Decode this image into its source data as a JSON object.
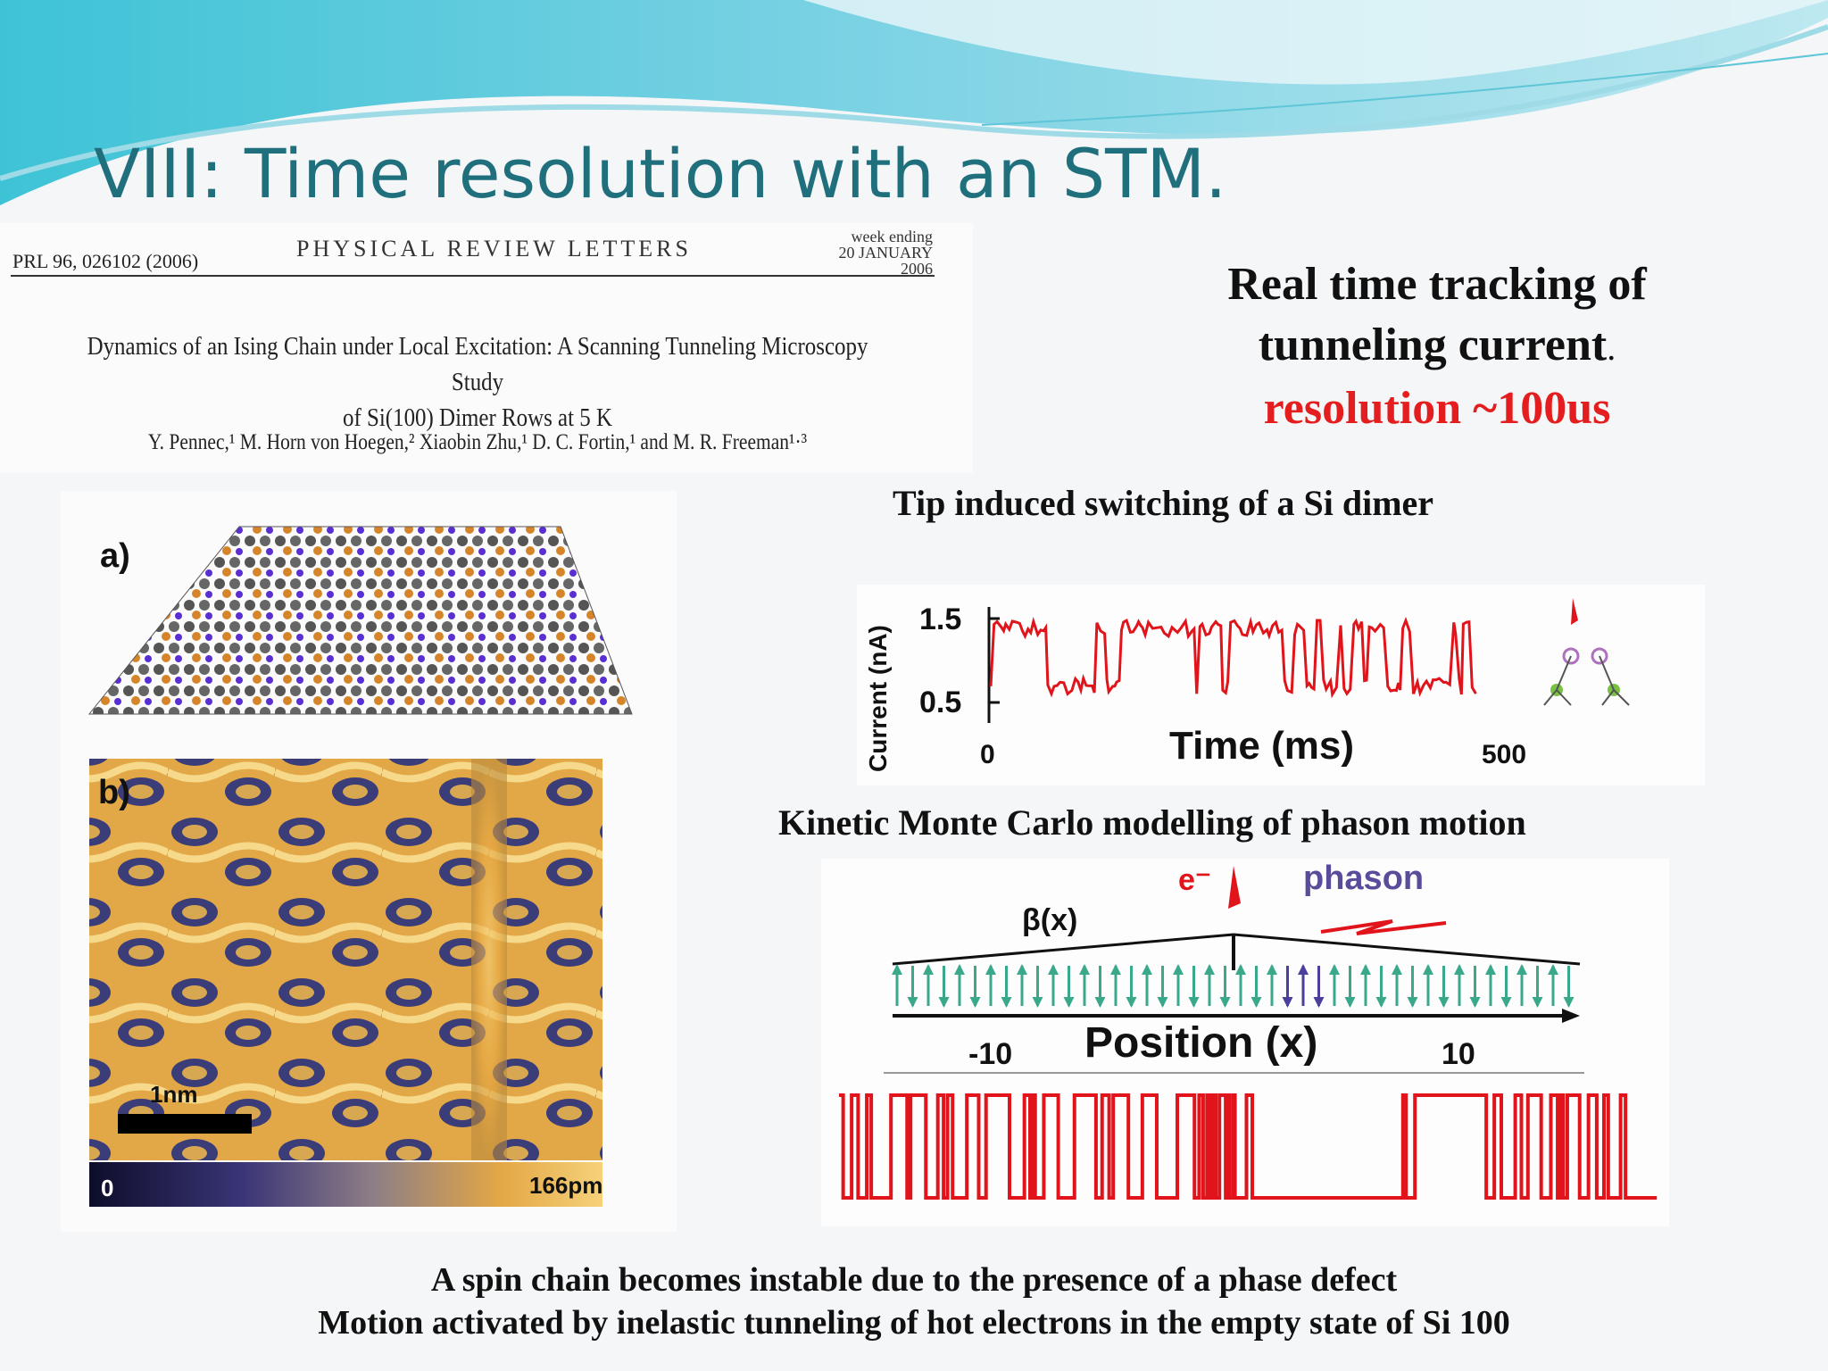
{
  "slide": {
    "title": "VIII: Time resolution with an STM.",
    "headline": {
      "line1": "Real time tracking of",
      "line2": "tunneling current",
      "line2_suffix": ".",
      "line3": "resolution ~100us"
    },
    "caption_tip": "Tip induced switching of a Si dimer",
    "caption_kmc": "Kinetic Monte Carlo modelling of phason motion",
    "bottom_line1": "A spin chain becomes instable due to the presence of a phase defect",
    "bottom_line2": "Motion activated by inelastic tunneling of hot electrons in the empty state of Si 100"
  },
  "paper": {
    "ref": "PRL 96, 026102 (2006)",
    "journal": "PHYSICAL REVIEW LETTERS",
    "week_label": "week ending",
    "week_date": "20 JANUARY 2006",
    "title_line1": "Dynamics of an Ising Chain under Local Excitation: A Scanning Tunneling Microscopy Study",
    "title_line2": "of Si(100) Dimer Rows at 5 K",
    "authors": "Y. Pennec,¹ M. Horn von Hoegen,² Xiaobin Zhu,¹ D. C. Fortin,¹ and M. R. Freeman¹·³"
  },
  "figure_left": {
    "label_a": "a)",
    "label_b": "b)",
    "scale_label": "1nm",
    "colorbar_min": "0",
    "colorbar_max": "166pm"
  },
  "figure_current": {
    "ylabel": "Current (nA)",
    "xlabel": "Time (ms)",
    "ytick_high": "1.5",
    "ytick_low": "0.5",
    "xtick_start": "0",
    "xtick_end": "500"
  },
  "figure_kmc": {
    "electron_label": "e⁻",
    "phason_label": "phason",
    "beta_label": "β(x)",
    "xlabel": "Position (x)",
    "xtick_left": "-10",
    "xtick_right": "10"
  },
  "colors": {
    "title": "#1f6f7d",
    "accent_red": "#e41e1e",
    "trace_red": "#e0141a",
    "arrow_teal": "#3aa88a"
  }
}
